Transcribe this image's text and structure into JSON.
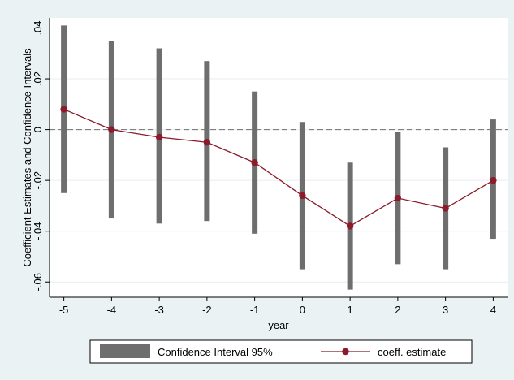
{
  "chart_data": {
    "type": "line",
    "xlabel": "year",
    "ylabel": "Coefficient Estimates and Confidence Intervals",
    "x": [
      -5,
      -4,
      -3,
      -2,
      -1,
      0,
      1,
      2,
      3,
      4
    ],
    "x_ticks": [
      -5,
      -4,
      -3,
      -2,
      -1,
      0,
      1,
      2,
      3,
      4
    ],
    "xlim": [
      -5.3,
      4.3
    ],
    "y_ticks": [
      0.04,
      0.02,
      0,
      -0.02,
      -0.04,
      -0.06
    ],
    "y_tick_labels": [
      ".04",
      ".02",
      "0",
      "-.02",
      "-.04",
      "-.06"
    ],
    "ylim": [
      -0.066,
      0.044
    ],
    "grid": true,
    "reference_line_y": 0,
    "legend_position": "bottom",
    "series": [
      {
        "name": "coeff. estimate",
        "type": "line",
        "color": "#8b1a2b",
        "values": [
          0.008,
          0.0,
          -0.003,
          -0.005,
          -0.013,
          -0.026,
          -0.038,
          -0.027,
          -0.031,
          -0.02
        ]
      },
      {
        "name": "Confidence Interval 95%",
        "type": "range-bar",
        "color": "#6e6e6e",
        "low": [
          -0.025,
          -0.035,
          -0.037,
          -0.036,
          -0.041,
          -0.055,
          -0.063,
          -0.053,
          -0.055,
          -0.043
        ],
        "high": [
          0.041,
          0.035,
          0.032,
          0.027,
          0.015,
          0.003,
          -0.013,
          -0.001,
          -0.007,
          0.004
        ]
      }
    ]
  }
}
